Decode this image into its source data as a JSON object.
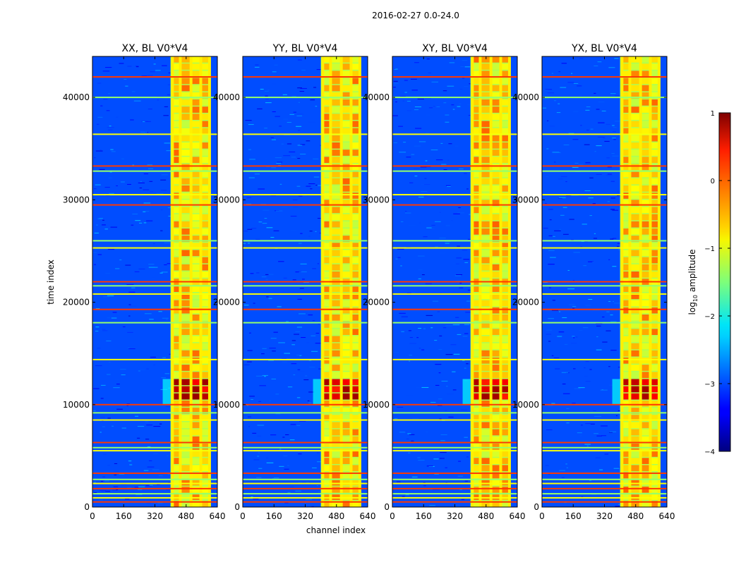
{
  "suptitle": "2016-02-27 0.0-24.0",
  "chart_data": {
    "type": "heatmap",
    "xlabel": "channel index",
    "ylabel": "time index",
    "xlim": [
      0,
      640
    ],
    "ylim": [
      0,
      44000
    ],
    "xticks": [
      0,
      160,
      320,
      480,
      640
    ],
    "yticks": [
      0,
      10000,
      20000,
      30000,
      40000
    ],
    "colormap": "jet",
    "colorbar": {
      "label_prefix": "log",
      "label_sub": "10",
      "label_suffix": " amplitude",
      "vmin": -4,
      "vmax": 1,
      "ticks": [
        1,
        0,
        -1,
        -2,
        -3,
        -4
      ],
      "tick_labels": [
        "1",
        "0",
        "−1",
        "−2",
        "−3",
        "−4"
      ]
    },
    "panels": [
      {
        "title": "XX, BL V0*V4",
        "pol": "XX"
      },
      {
        "title": "YY, BL V0*V4",
        "pol": "YY"
      },
      {
        "title": "XY, BL V0*V4",
        "pol": "XY"
      },
      {
        "title": "YX, BL V0*V4",
        "pol": "YX"
      }
    ],
    "features": {
      "bright_band_channels": [
        400,
        600
      ],
      "bright_columns": [
        410,
        450,
        505,
        555,
        600
      ],
      "background_level": -3.0,
      "band_level": -1.0,
      "hot_time_ranges": [
        [
          10000,
          12500
        ]
      ],
      "rfi_rows": [
        500,
        900,
        1300,
        1800,
        2300,
        2700,
        3300,
        5500,
        5800,
        6300,
        8500,
        9200,
        10000,
        14400,
        18000,
        19300,
        20800,
        21600,
        22000,
        25300,
        26000,
        29500,
        30500,
        32800,
        33300,
        36400,
        40000,
        42000
      ]
    }
  }
}
